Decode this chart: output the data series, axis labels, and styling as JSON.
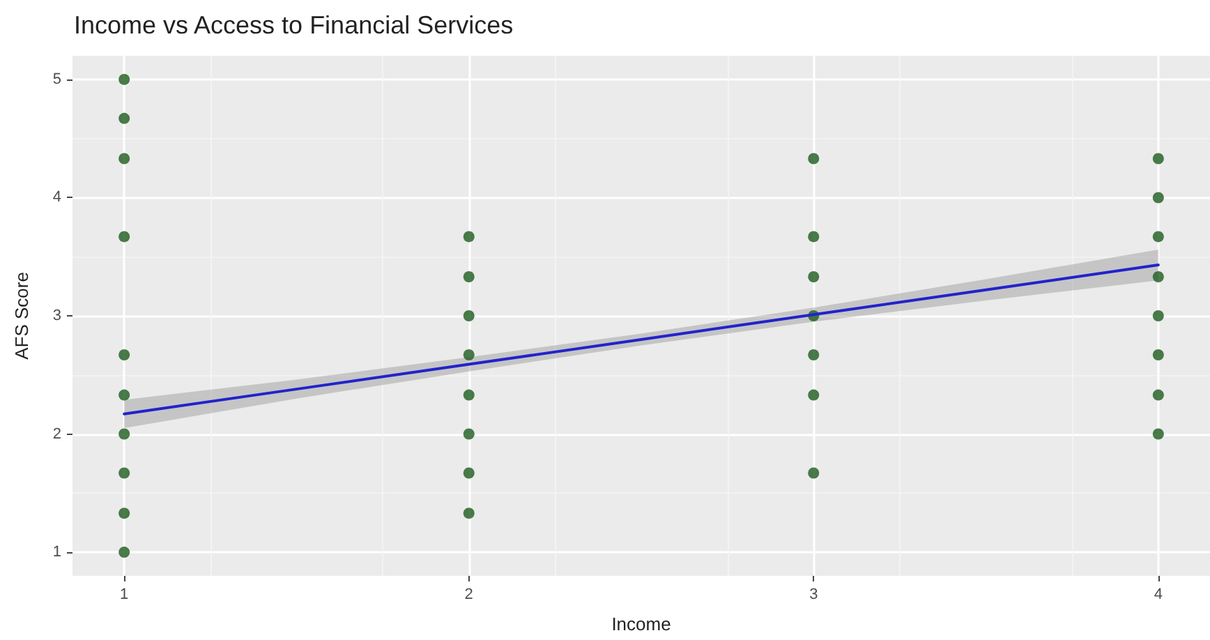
{
  "chart_data": {
    "type": "scatter",
    "title": "Income vs Access to Financial Services",
    "xlabel": "Income",
    "ylabel": "AFS Score",
    "xlim": [
      0.85,
      4.15
    ],
    "xticks": [
      1,
      2,
      3,
      4
    ],
    "ylim": [
      0.8,
      5.2
    ],
    "yticks": [
      1,
      2,
      3,
      4,
      5
    ],
    "grid": true,
    "marker": "circle",
    "series": [
      {
        "color": "#1e5b1e",
        "x": [
          1,
          1,
          1,
          1,
          1,
          1,
          1,
          1,
          1,
          1,
          2,
          2,
          2,
          2,
          2,
          2,
          2,
          2,
          3,
          3,
          3,
          3,
          3,
          3,
          3,
          4,
          4,
          4,
          4,
          4,
          4,
          4,
          4
        ],
        "values": [
          5,
          4.67,
          4.33,
          3.67,
          2.67,
          2.33,
          2,
          1.67,
          1.33,
          1,
          3.67,
          3.33,
          3,
          2.67,
          2.33,
          2,
          1.67,
          1.33,
          4.33,
          3.67,
          3.33,
          3,
          2.67,
          2.33,
          1.67,
          4.33,
          4,
          3.67,
          3.33,
          3,
          2.67,
          2.33,
          2
        ]
      },
      {
        "type": "line",
        "color": "#2222cc",
        "marker": "none",
        "line_style": "solid",
        "x": [
          1,
          1.5,
          2,
          2.5,
          3,
          3.5,
          4
        ],
        "values": [
          2.17,
          2.38,
          2.59,
          2.8,
          3.01,
          3.22,
          3.43
        ],
        "lower": [
          2.05,
          2.3,
          2.53,
          2.75,
          2.95,
          3.13,
          3.3
        ],
        "upper": [
          2.29,
          2.46,
          2.65,
          2.85,
          3.07,
          3.31,
          3.56
        ]
      }
    ]
  }
}
